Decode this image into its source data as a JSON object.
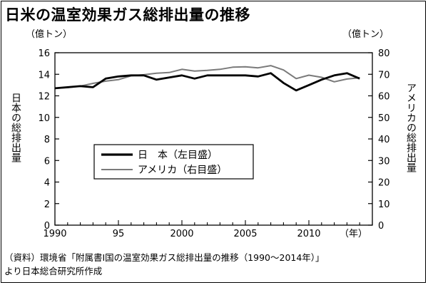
{
  "title": "日米の温室効果ガス総排出量の推移",
  "source_line1": "（資料）環境省「附属書Ⅰ国の温室効果ガス総排出量の推移（1990〜2014年）」",
  "source_line2": "より日本総合研究所作成",
  "chart_data": {
    "type": "line",
    "title": "日米の温室効果ガス総排出量の推移",
    "xlabel": "（年）",
    "x": [
      1990,
      1991,
      1992,
      1993,
      1994,
      1995,
      1996,
      1997,
      1998,
      1999,
      2000,
      2001,
      2002,
      2003,
      2004,
      2005,
      2006,
      2007,
      2008,
      2009,
      2010,
      2011,
      2012,
      2013,
      2014
    ],
    "xlim": [
      1990,
      2015
    ],
    "x_ticks": [
      "1990",
      "95",
      "2000",
      "2005",
      "2010"
    ],
    "left_axis": {
      "unit": "（億トン）",
      "label": "日本の総排出量",
      "ylim": [
        0,
        16
      ],
      "ticks": [
        "0",
        "2",
        "4",
        "6",
        "8",
        "10",
        "12",
        "14",
        "16"
      ]
    },
    "right_axis": {
      "unit": "（億トン）",
      "label": "アメリカの総排出量",
      "ylim": [
        0,
        80
      ],
      "ticks": [
        "0",
        "10",
        "20",
        "30",
        "40",
        "50",
        "60",
        "70",
        "80"
      ]
    },
    "series": [
      {
        "name": "日　本（左目盛）",
        "axis": "left",
        "color": "#000000",
        "values": [
          12.7,
          12.8,
          12.9,
          12.8,
          13.6,
          13.8,
          13.9,
          13.9,
          13.5,
          13.7,
          13.9,
          13.6,
          13.9,
          13.9,
          13.9,
          13.9,
          13.8,
          14.1,
          13.2,
          12.5,
          13.0,
          13.5,
          13.9,
          14.1,
          13.6
        ]
      },
      {
        "name": "アメリカ（右目盛）",
        "axis": "right",
        "color": "#7a7a7a",
        "values": [
          63.5,
          63.8,
          64.5,
          65.8,
          66.8,
          67.5,
          69.3,
          69.8,
          70.5,
          70.8,
          72.3,
          71.5,
          71.8,
          72.3,
          73.3,
          73.5,
          73.0,
          74.0,
          72.0,
          68.0,
          69.6,
          68.6,
          66.5,
          67.8,
          68.4
        ]
      }
    ],
    "legend_position": "center-left",
    "grid": false
  }
}
